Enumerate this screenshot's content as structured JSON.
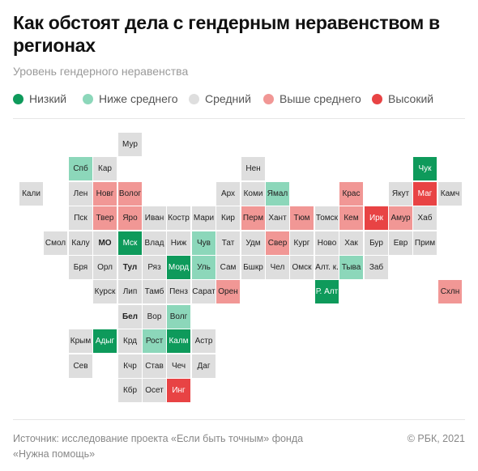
{
  "title": "Как обстоят дела с гендерным неравенством в регионах",
  "subtitle": "Уровень гендерного неравенства",
  "legend": [
    {
      "key": "low",
      "label": "Низкий",
      "color": "#0e9a5b"
    },
    {
      "key": "below",
      "label": "Ниже среднего",
      "color": "#8cd7ba"
    },
    {
      "key": "avg",
      "label": "Средний",
      "color": "#dedede"
    },
    {
      "key": "above",
      "label": "Выше среднего",
      "color": "#f19795"
    },
    {
      "key": "high",
      "label": "Высокий",
      "color": "#e84344"
    }
  ],
  "regions": [
    {
      "name": "Мур",
      "level": "avg",
      "col": 4,
      "row": 0
    },
    {
      "name": "Спб",
      "level": "below",
      "col": 2,
      "row": 1
    },
    {
      "name": "Кар",
      "level": "avg",
      "col": 3,
      "row": 1
    },
    {
      "name": "Нен",
      "level": "avg",
      "col": 9,
      "row": 1
    },
    {
      "name": "Чук",
      "level": "low",
      "col": 16,
      "row": 1
    },
    {
      "name": "Кали",
      "level": "avg",
      "col": 0,
      "row": 2
    },
    {
      "name": "Лен",
      "level": "avg",
      "col": 2,
      "row": 2
    },
    {
      "name": "Новг",
      "level": "above",
      "col": 3,
      "row": 2
    },
    {
      "name": "Волог",
      "level": "above",
      "col": 4,
      "row": 2
    },
    {
      "name": "Арх",
      "level": "avg",
      "col": 8,
      "row": 2
    },
    {
      "name": "Коми",
      "level": "avg",
      "col": 9,
      "row": 2
    },
    {
      "name": "Ямал",
      "level": "below",
      "col": 10,
      "row": 2
    },
    {
      "name": "Крас",
      "level": "above",
      "col": 13,
      "row": 2
    },
    {
      "name": "Якут",
      "level": "avg",
      "col": 15,
      "row": 2
    },
    {
      "name": "Маг",
      "level": "high",
      "col": 16,
      "row": 2
    },
    {
      "name": "Камч",
      "level": "avg",
      "col": 17,
      "row": 2
    },
    {
      "name": "Пск",
      "level": "avg",
      "col": 2,
      "row": 3
    },
    {
      "name": "Твер",
      "level": "above",
      "col": 3,
      "row": 3
    },
    {
      "name": "Яро",
      "level": "above",
      "col": 4,
      "row": 3
    },
    {
      "name": "Иван",
      "level": "avg",
      "col": 5,
      "row": 3
    },
    {
      "name": "Костр",
      "level": "avg",
      "col": 6,
      "row": 3
    },
    {
      "name": "Мари",
      "level": "avg",
      "col": 7,
      "row": 3
    },
    {
      "name": "Кир",
      "level": "avg",
      "col": 8,
      "row": 3
    },
    {
      "name": "Перм",
      "level": "above",
      "col": 9,
      "row": 3
    },
    {
      "name": "Хант",
      "level": "avg",
      "col": 10,
      "row": 3
    },
    {
      "name": "Тюм",
      "level": "above",
      "col": 11,
      "row": 3
    },
    {
      "name": "Томск",
      "level": "avg",
      "col": 12,
      "row": 3
    },
    {
      "name": "Кем",
      "level": "above",
      "col": 13,
      "row": 3
    },
    {
      "name": "Ирк",
      "level": "high",
      "col": 14,
      "row": 3
    },
    {
      "name": "Амур",
      "level": "above",
      "col": 15,
      "row": 3
    },
    {
      "name": "Хаб",
      "level": "avg",
      "col": 16,
      "row": 3
    },
    {
      "name": "Смол",
      "level": "avg",
      "col": 1,
      "row": 4
    },
    {
      "name": "Калу",
      "level": "avg",
      "col": 2,
      "row": 4
    },
    {
      "name": "МО",
      "level": "avg",
      "col": 3,
      "row": 4,
      "bold": true
    },
    {
      "name": "Мск",
      "level": "low",
      "col": 4,
      "row": 4
    },
    {
      "name": "Влад",
      "level": "avg",
      "col": 5,
      "row": 4
    },
    {
      "name": "Ниж",
      "level": "avg",
      "col": 6,
      "row": 4
    },
    {
      "name": "Чув",
      "level": "below",
      "col": 7,
      "row": 4
    },
    {
      "name": "Тат",
      "level": "avg",
      "col": 8,
      "row": 4
    },
    {
      "name": "Удм",
      "level": "avg",
      "col": 9,
      "row": 4
    },
    {
      "name": "Свер",
      "level": "above",
      "col": 10,
      "row": 4
    },
    {
      "name": "Кург",
      "level": "avg",
      "col": 11,
      "row": 4
    },
    {
      "name": "Ново",
      "level": "avg",
      "col": 12,
      "row": 4
    },
    {
      "name": "Хак",
      "level": "avg",
      "col": 13,
      "row": 4
    },
    {
      "name": "Бур",
      "level": "avg",
      "col": 14,
      "row": 4
    },
    {
      "name": "Евр",
      "level": "avg",
      "col": 15,
      "row": 4
    },
    {
      "name": "Прим",
      "level": "avg",
      "col": 16,
      "row": 4
    },
    {
      "name": "Бря",
      "level": "avg",
      "col": 2,
      "row": 5
    },
    {
      "name": "Орл",
      "level": "avg",
      "col": 3,
      "row": 5
    },
    {
      "name": "Тул",
      "level": "avg",
      "col": 4,
      "row": 5,
      "bold": true
    },
    {
      "name": "Ряз",
      "level": "avg",
      "col": 5,
      "row": 5
    },
    {
      "name": "Морд",
      "level": "low",
      "col": 6,
      "row": 5
    },
    {
      "name": "Уль",
      "level": "below",
      "col": 7,
      "row": 5
    },
    {
      "name": "Сам",
      "level": "avg",
      "col": 8,
      "row": 5
    },
    {
      "name": "Бшкр",
      "level": "avg",
      "col": 9,
      "row": 5
    },
    {
      "name": "Чел",
      "level": "avg",
      "col": 10,
      "row": 5
    },
    {
      "name": "Омск",
      "level": "avg",
      "col": 11,
      "row": 5
    },
    {
      "name": "Алт. к.",
      "level": "avg",
      "col": 12,
      "row": 5
    },
    {
      "name": "Тыва",
      "level": "below",
      "col": 13,
      "row": 5
    },
    {
      "name": "Заб",
      "level": "avg",
      "col": 14,
      "row": 5
    },
    {
      "name": "Курск",
      "level": "avg",
      "col": 3,
      "row": 6
    },
    {
      "name": "Лип",
      "level": "avg",
      "col": 4,
      "row": 6
    },
    {
      "name": "Тамб",
      "level": "avg",
      "col": 5,
      "row": 6
    },
    {
      "name": "Пенз",
      "level": "avg",
      "col": 6,
      "row": 6
    },
    {
      "name": "Сарат",
      "level": "avg",
      "col": 7,
      "row": 6
    },
    {
      "name": "Орен",
      "level": "above",
      "col": 8,
      "row": 6
    },
    {
      "name": "Р. Алт",
      "level": "low",
      "col": 12,
      "row": 6
    },
    {
      "name": "Схлн",
      "level": "above",
      "col": 17,
      "row": 6
    },
    {
      "name": "Бел",
      "level": "avg",
      "col": 4,
      "row": 7,
      "bold": true
    },
    {
      "name": "Вор",
      "level": "avg",
      "col": 5,
      "row": 7
    },
    {
      "name": "Волг",
      "level": "below",
      "col": 6,
      "row": 7
    },
    {
      "name": "Крым",
      "level": "avg",
      "col": 2,
      "row": 8
    },
    {
      "name": "Адыг",
      "level": "low",
      "col": 3,
      "row": 8
    },
    {
      "name": "Крд",
      "level": "avg",
      "col": 4,
      "row": 8
    },
    {
      "name": "Рост",
      "level": "below",
      "col": 5,
      "row": 8
    },
    {
      "name": "Калм",
      "level": "low",
      "col": 6,
      "row": 8
    },
    {
      "name": "Астр",
      "level": "avg",
      "col": 7,
      "row": 8
    },
    {
      "name": "Сев",
      "level": "avg",
      "col": 2,
      "row": 9
    },
    {
      "name": "Кчр",
      "level": "avg",
      "col": 4,
      "row": 9
    },
    {
      "name": "Став",
      "level": "avg",
      "col": 5,
      "row": 9
    },
    {
      "name": "Чеч",
      "level": "avg",
      "col": 6,
      "row": 9
    },
    {
      "name": "Даг",
      "level": "avg",
      "col": 7,
      "row": 9
    },
    {
      "name": "Кбр",
      "level": "avg",
      "col": 4,
      "row": 10
    },
    {
      "name": "Осет",
      "level": "avg",
      "col": 5,
      "row": 10
    },
    {
      "name": "Инг",
      "level": "high",
      "col": 6,
      "row": 10
    }
  ],
  "footer": {
    "source_line1": "Источник:  исследование проекта «Если быть точным» фонда",
    "source_line2": "«Нужна помощь»",
    "copyright": "© РБК, 2021"
  }
}
